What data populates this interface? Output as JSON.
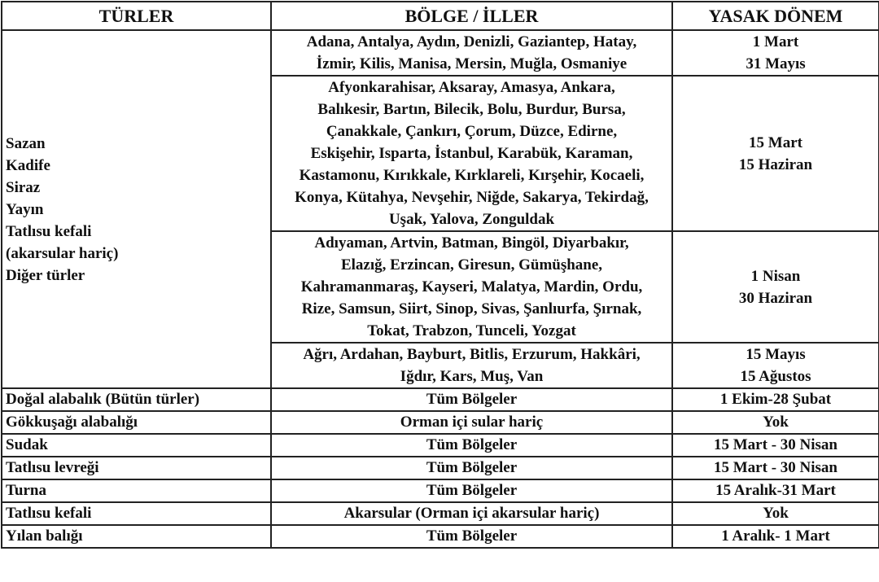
{
  "table": {
    "header": [
      "TÜRLER",
      "BÖLGE / İLLER",
      "YASAK DÖNEM"
    ],
    "group": {
      "species": [
        "Sazan",
        "Kadife",
        "Siraz",
        "Yayın",
        "Tatlısu kefali",
        "(akarsular hariç)",
        "Diğer türler"
      ],
      "regions": [
        {
          "provinces": [
            "Adana, Antalya, Aydın, Denizli, Gaziantep, Hatay,",
            "İzmir, Kilis, Manisa, Mersin, Muğla,  Osmaniye"
          ],
          "period": [
            "1 Mart",
            "31 Mayıs"
          ]
        },
        {
          "provinces": [
            "Afyonkarahisar, Aksaray, Amasya, Ankara,",
            "Balıkesir, Bartın, Bilecik, Bolu, Burdur, Bursa,",
            "Çanakkale, Çankırı, Çorum, Düzce, Edirne,",
            "Eskişehir, Isparta, İstanbul, Karabük, Karaman,",
            "Kastamonu, Kırıkkale, Kırklareli, Kırşehir, Kocaeli,",
            "Konya, Kütahya, Nevşehir, Niğde, Sakarya, Tekirdağ,",
            "Uşak, Yalova, Zonguldak"
          ],
          "period": [
            "15 Mart",
            "15 Haziran"
          ]
        },
        {
          "provinces": [
            "Adıyaman, Artvin, Batman, Bingöl, Diyarbakır,",
            "Elazığ, Erzincan, Giresun, Gümüşhane,",
            "Kahramanmaraş, Kayseri, Malatya, Mardin, Ordu,",
            "Rize, Samsun, Siirt, Sinop, Sivas, Şanlıurfa, Şırnak,",
            "Tokat, Trabzon, Tunceli,  Yozgat"
          ],
          "period": [
            "1 Nisan",
            "30 Haziran"
          ]
        },
        {
          "provinces": [
            "Ağrı, Ardahan, Bayburt, Bitlis, Erzurum, Hakkâri,",
            "Iğdır, Kars, Muş, Van"
          ],
          "period": [
            "15 Mayıs",
            "15 Ağustos"
          ]
        }
      ]
    },
    "rows": [
      [
        "Doğal alabalık (Bütün türler)",
        "Tüm Bölgeler",
        "1 Ekim-28 Şubat"
      ],
      [
        "Gökkuşağı alabalığı",
        "Orman içi sular hariç",
        "Yok"
      ],
      [
        "Sudak",
        "Tüm Bölgeler",
        "15 Mart - 30 Nisan"
      ],
      [
        "Tatlısu levreği",
        "Tüm Bölgeler",
        "15 Mart - 30 Nisan"
      ],
      [
        "Turna",
        "Tüm Bölgeler",
        "15 Aralık-31 Mart"
      ],
      [
        "Tatlısu kefali",
        "Akarsular (Orman içi akarsular hariç)",
        "Yok"
      ],
      [
        "Yılan balığı",
        "Tüm Bölgeler",
        "1 Aralık- 1 Mart"
      ]
    ]
  }
}
